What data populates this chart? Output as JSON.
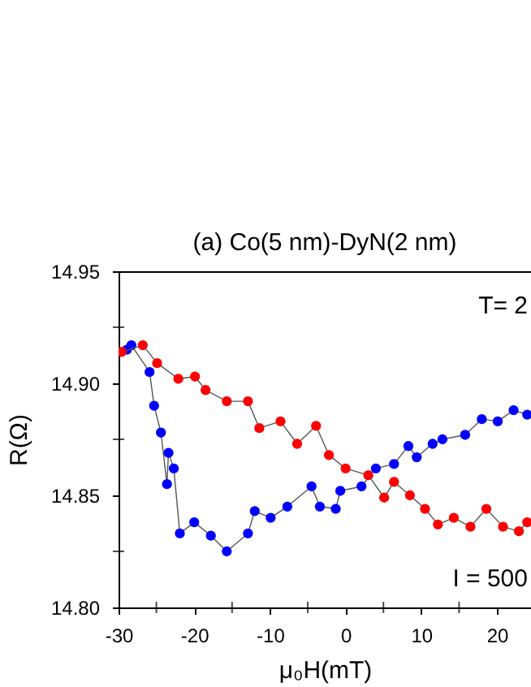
{
  "chart_data": {
    "type": "line",
    "title": "(a) Co(5 nm)-DyN(2 nm)",
    "xlabel": "μ₀H(mT)",
    "ylabel": "R(Ω)",
    "annotations": [
      "T= 2",
      "I = 500"
    ],
    "marker": "circle",
    "xlim": [
      -30,
      24.5
    ],
    "ylim": [
      14.8,
      14.95
    ],
    "xticks": [
      -30,
      {
        "value": -25,
        "label": null
      },
      -20,
      {
        "value": -15,
        "label": null
      },
      -10,
      {
        "value": -5,
        "label": null
      },
      0,
      {
        "value": 5,
        "label": null
      },
      10,
      {
        "value": 15,
        "label": null
      },
      20
    ],
    "yticks": [
      {
        "value": 14.8,
        "label": "14.80"
      },
      {
        "value": 14.825,
        "label": null
      },
      {
        "value": 14.85,
        "label": "14.85"
      },
      {
        "value": 14.875,
        "label": null
      },
      {
        "value": 14.9,
        "label": "14.90"
      },
      {
        "value": 14.925,
        "label": null
      },
      {
        "value": 14.95,
        "label": "14.95"
      }
    ],
    "series": [
      {
        "color": "#0000ff",
        "x": [
          -28.9,
          -28.3,
          -25.9,
          -25.3,
          -24.4,
          -23.6,
          -23.4,
          -22.7,
          -21.9,
          -20,
          -17.8,
          -15.7,
          -12.9,
          -12,
          -9.9,
          -7.7,
          -4.5,
          -3.4,
          -1.3,
          -0.7,
          2.1,
          4,
          6.4,
          8.3,
          9.4,
          11.5,
          12.8,
          15.8,
          18,
          20.1,
          22.2,
          24
        ],
        "values": [
          14.915,
          14.917,
          14.905,
          14.89,
          14.878,
          14.855,
          14.869,
          14.862,
          14.833,
          14.838,
          14.832,
          14.825,
          14.833,
          14.843,
          14.84,
          14.845,
          14.854,
          14.845,
          14.844,
          14.852,
          14.854,
          14.862,
          14.864,
          14.872,
          14.867,
          14.873,
          14.875,
          14.877,
          14.884,
          14.883,
          14.888,
          14.886
        ]
      },
      {
        "color": "#ff0000",
        "x": [
          -29.6,
          -26.8,
          -24.9,
          -22.1,
          -19.9,
          -18.5,
          -15.7,
          -12.9,
          -11.4,
          -8.6,
          -6.4,
          -3.9,
          -2.2,
          0,
          3,
          5.1,
          6.4,
          8.5,
          10.5,
          12.2,
          14.3,
          16.5,
          18.6,
          20.8,
          22.9,
          24
        ],
        "values": [
          14.914,
          14.917,
          14.909,
          14.902,
          14.903,
          14.897,
          14.892,
          14.892,
          14.88,
          14.883,
          14.873,
          14.881,
          14.868,
          14.862,
          14.859,
          14.849,
          14.856,
          14.85,
          14.844,
          14.837,
          14.84,
          14.836,
          14.844,
          14.836,
          14.834,
          14.838
        ]
      }
    ]
  }
}
